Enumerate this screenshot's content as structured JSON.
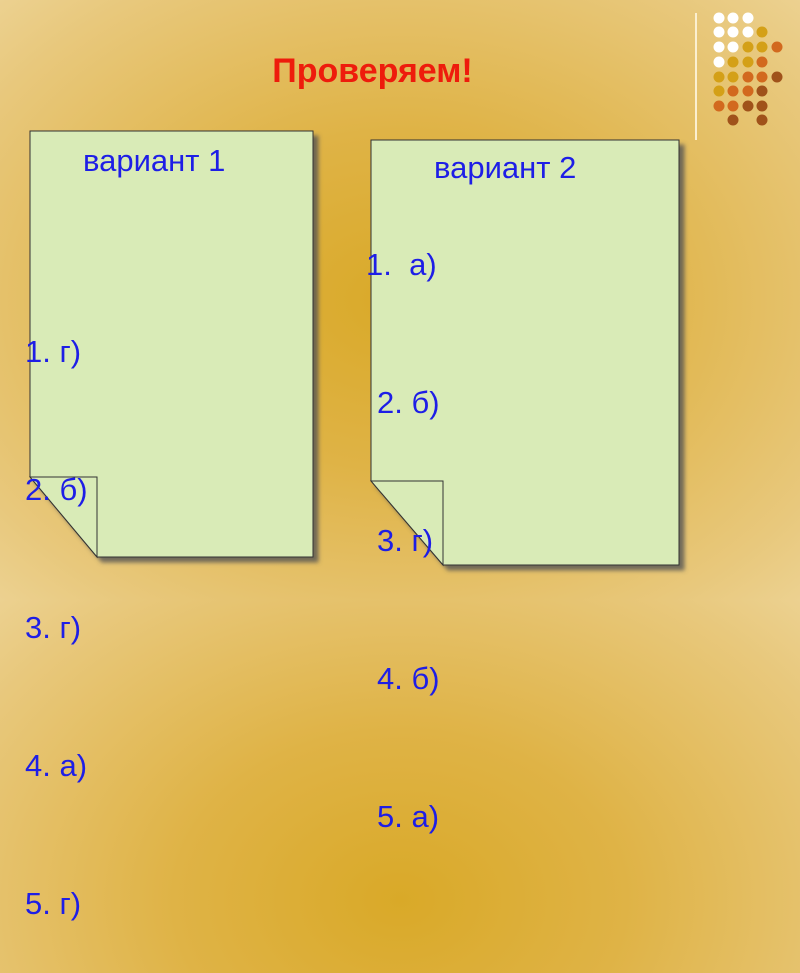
{
  "title": "Проверяем!",
  "cards": [
    {
      "heading": "вариант 1",
      "answers": [
        "1. г)",
        "2. б)",
        "3. г)",
        "4. а)",
        "5. г)"
      ]
    },
    {
      "heading": "вариант 2",
      "answers": [
        "1.  а)",
        "2. б)",
        "3. г)",
        "4. б)",
        "5. а)"
      ]
    }
  ],
  "colors": {
    "title": "#ee1c0c",
    "text": "#1e1ee6",
    "card": "#d9ebb7",
    "dot_white": "#ffffff",
    "dot_gold": "#d4a017",
    "dot_orange": "#d2691e",
    "dot_brown": "#a0521a"
  }
}
